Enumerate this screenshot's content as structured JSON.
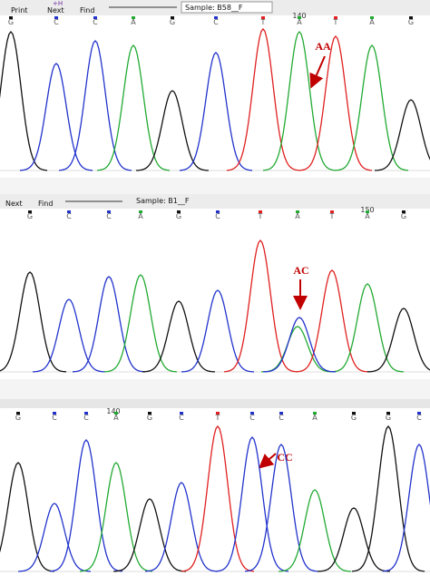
{
  "panels": [
    {
      "toolbar": {
        "buttons": [
          "Print",
          "Next",
          "Find"
        ],
        "hotkey": "+H",
        "sample": "Sample: B58__F"
      },
      "position": "140",
      "bases": [
        "G",
        "C",
        "C",
        "A",
        "G",
        "C",
        "T",
        "A",
        "T",
        "A",
        "G"
      ],
      "annotation": "AA"
    },
    {
      "toolbar": {
        "buttons": [
          "Next",
          "Find"
        ],
        "sample": "Sample: B1__F"
      },
      "position": "150",
      "bases": [
        "G",
        "C",
        "C",
        "A",
        "G",
        "C",
        "T",
        "A",
        "T",
        "A",
        "G"
      ],
      "annotation": "AC"
    },
    {
      "position": "140",
      "bases": [
        "G",
        "C",
        "C",
        "A",
        "G",
        "C",
        "T",
        "C",
        "C",
        "A",
        "G",
        "G",
        "C"
      ],
      "annotation": "CC"
    }
  ]
}
